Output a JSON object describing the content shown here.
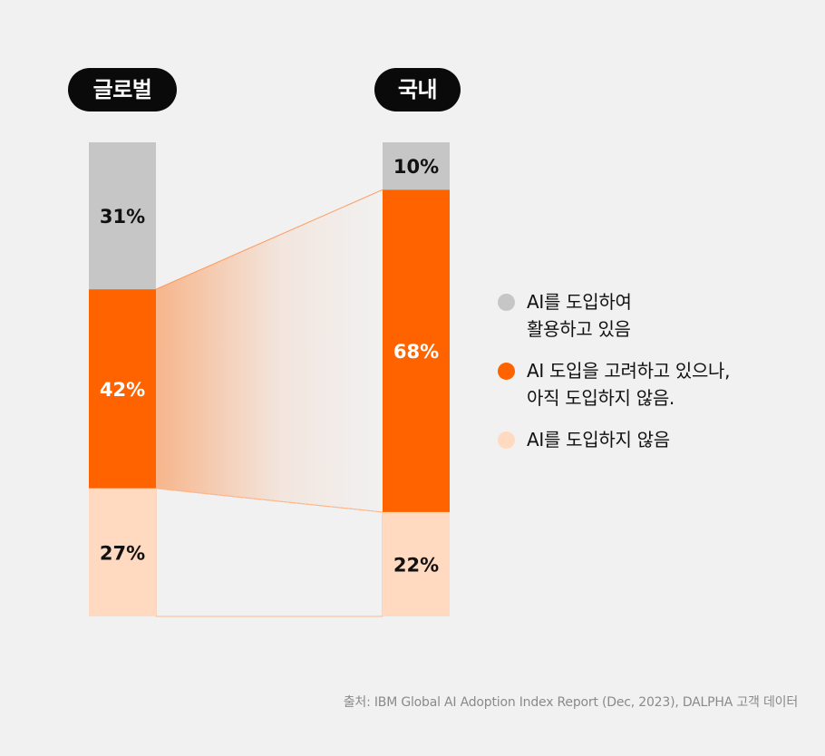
{
  "colors": {
    "used": "#c6c6c6",
    "considering": "#ff6300",
    "not_adopting": "#ffd9c0",
    "pill_bg": "#0a0a0a"
  },
  "chart_data": {
    "type": "bar",
    "stacked": true,
    "categories": [
      "글로벌",
      "국내"
    ],
    "series": [
      {
        "name": "AI를 도입하여 활용하고 있음",
        "values": [
          31,
          10
        ]
      },
      {
        "name": "AI 도입을 고려하고 있으나, 아직 도입하지 않음.",
        "values": [
          42,
          68
        ]
      },
      {
        "name": "AI를 도입하지 않음",
        "values": [
          27,
          22
        ]
      }
    ],
    "value_labels": [
      [
        "31%",
        "42%",
        "27%"
      ],
      [
        "10%",
        "68%",
        "22%"
      ]
    ],
    "unit": "%",
    "ylim": [
      0,
      100
    ],
    "legend_position": "right",
    "grid": false
  },
  "headers": {
    "global": "글로벌",
    "domestic": "국내"
  },
  "legend": {
    "items": [
      {
        "lines": [
          "AI를 도입하여",
          "활용하고 있음"
        ],
        "color_key": "used"
      },
      {
        "lines": [
          "AI 도입을 고려하고 있으나,",
          "아직 도입하지 않음."
        ],
        "color_key": "considering"
      },
      {
        "lines": [
          "AI를 도입하지 않음"
        ],
        "color_key": "not_adopting"
      }
    ]
  },
  "source": "출처: IBM Global AI Adoption Index Report (Dec, 2023), DALPHA 고객 데이터"
}
